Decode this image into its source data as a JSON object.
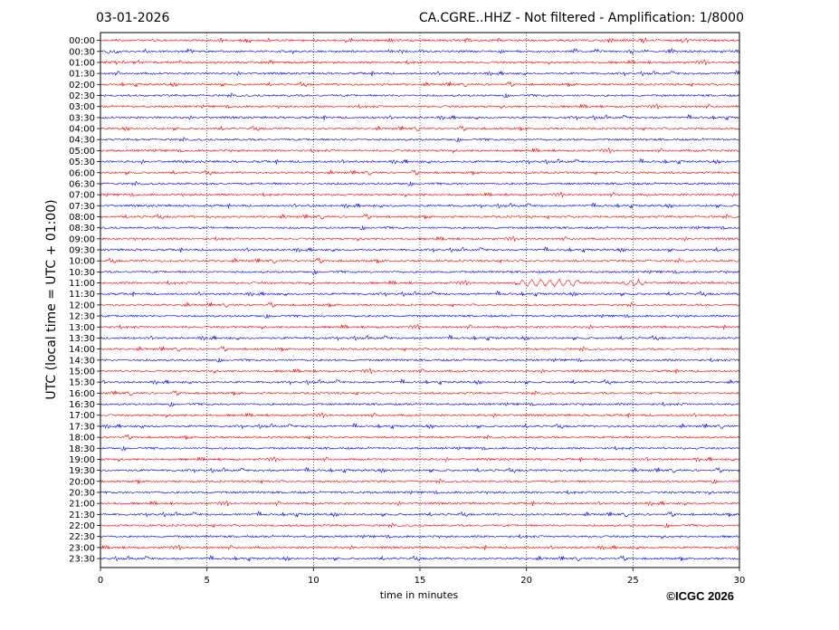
{
  "header": {
    "date": "03-01-2026",
    "title": "CA.CGRE..HHZ - Not filtered - Amplification: 1/8000"
  },
  "footer": {
    "copyright": "©ICGC 2026"
  },
  "chart_data": {
    "type": "line",
    "subtype": "helicorder",
    "xlabel": "time in minutes",
    "ylabel": "UTC (local time = UTC + 01:00)",
    "xlim": [
      0,
      30
    ],
    "xticks": [
      0,
      5,
      10,
      15,
      20,
      25,
      30
    ],
    "grid": "vertical dotted lines at x ticks",
    "rows": [
      "00:00",
      "00:30",
      "01:00",
      "01:30",
      "02:00",
      "02:30",
      "03:00",
      "03:30",
      "04:00",
      "04:30",
      "05:00",
      "05:30",
      "06:00",
      "06:30",
      "07:00",
      "07:30",
      "08:00",
      "08:30",
      "09:00",
      "09:30",
      "10:00",
      "10:30",
      "11:00",
      "11:30",
      "12:00",
      "12:30",
      "13:00",
      "13:30",
      "14:00",
      "14:30",
      "15:00",
      "15:30",
      "16:00",
      "16:30",
      "17:00",
      "17:30",
      "18:00",
      "18:30",
      "19:00",
      "19:30",
      "20:00",
      "20:30",
      "21:00",
      "21:30",
      "22:00",
      "22:30",
      "23:00",
      "23:30"
    ],
    "trace_colors": [
      "#ff0000",
      "#0000ff"
    ],
    "events": [
      {
        "row": "11:00",
        "x_min_start": 19.5,
        "x_min_end": 22.5,
        "note": "oscillation"
      }
    ]
  }
}
